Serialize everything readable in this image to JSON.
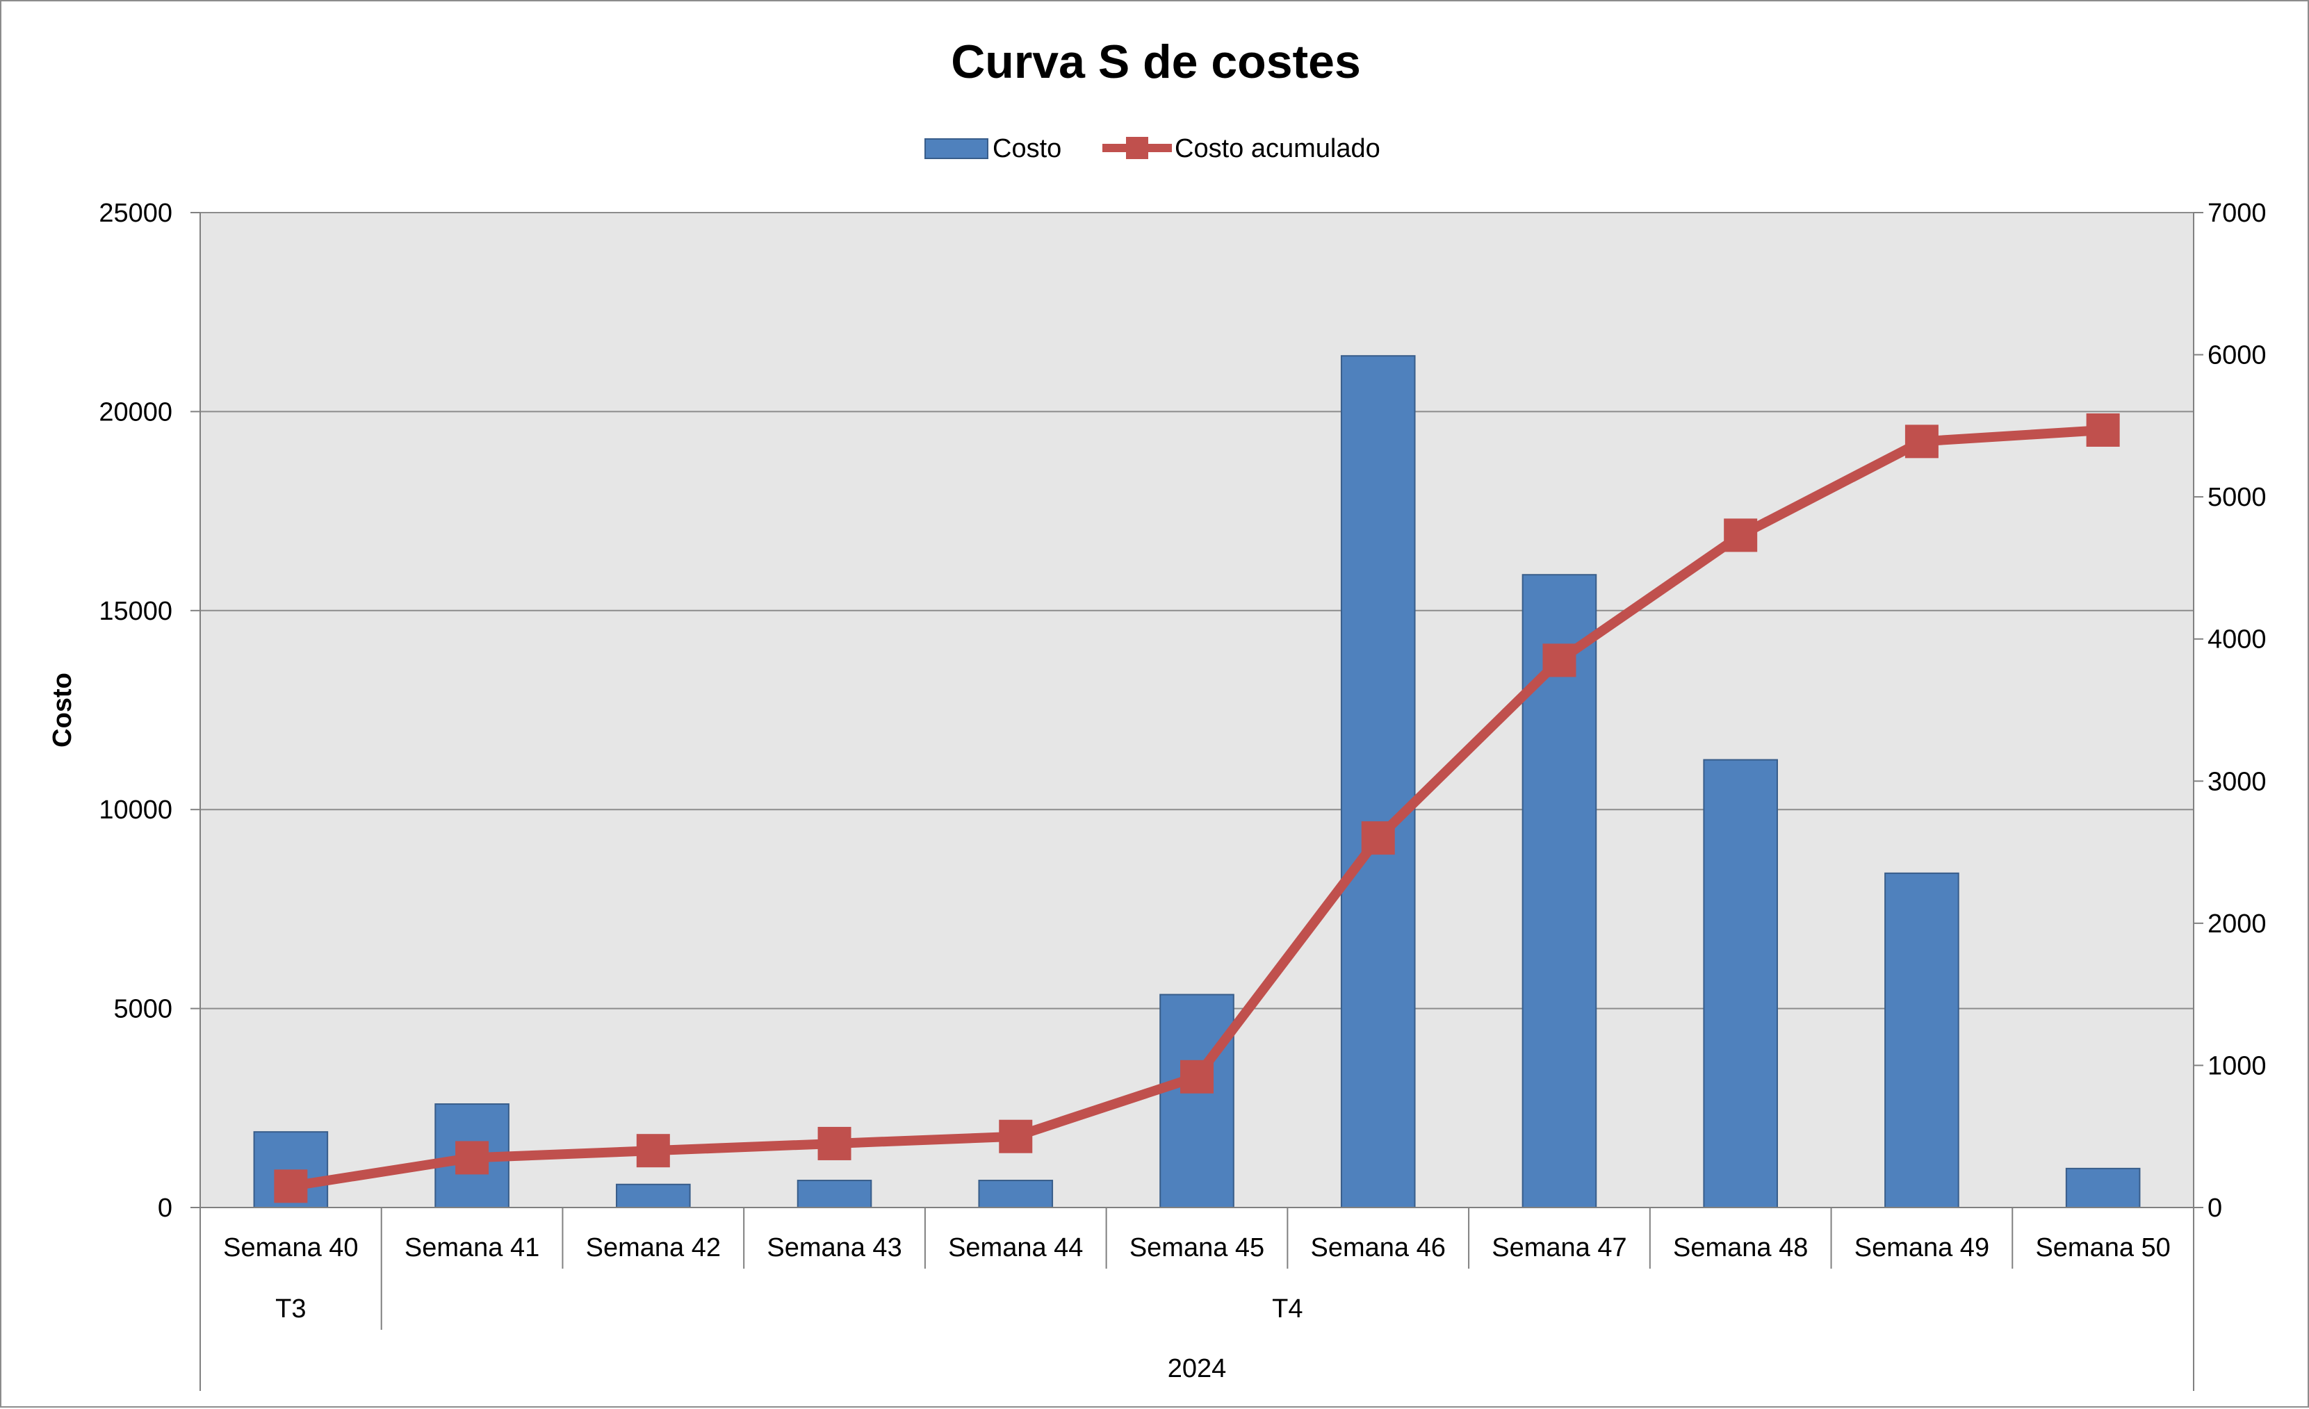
{
  "chart_data": {
    "type": "bar",
    "title": "Curva S de costes",
    "ylabel": "Costo",
    "y2label": "",
    "ylim": [
      0,
      25000
    ],
    "y2lim": [
      0,
      7000
    ],
    "yticks": [
      "0",
      "5000",
      "10000",
      "15000",
      "20000",
      "25000"
    ],
    "y2ticks": [
      "0",
      "1000",
      "2000",
      "3000",
      "4000",
      "5000",
      "6000",
      "7000"
    ],
    "grid": true,
    "legend_position": "top",
    "categories": [
      "Semana 40",
      "Semana 41",
      "Semana 42",
      "Semana 43",
      "Semana 44",
      "Semana 45",
      "Semana 46",
      "Semana 47",
      "Semana 48",
      "Semana 49",
      "Semana 50"
    ],
    "category_groups": [
      {
        "label": "T3",
        "span": 1
      },
      {
        "label": "T4",
        "span": 10
      }
    ],
    "category_supergroup": "2024",
    "series": [
      {
        "name": "Costo",
        "type": "bar",
        "axis": "left",
        "color": "#4f81bd",
        "values": [
          1900,
          2600,
          580,
          680,
          680,
          5350,
          21400,
          15900,
          11250,
          8400,
          980
        ]
      },
      {
        "name": "Costo acumulado",
        "type": "line",
        "axis": "right",
        "color": "#c0504d",
        "values": [
          150,
          350,
          400,
          450,
          500,
          920,
          2600,
          3850,
          4730,
          5390,
          5470
        ]
      }
    ]
  }
}
